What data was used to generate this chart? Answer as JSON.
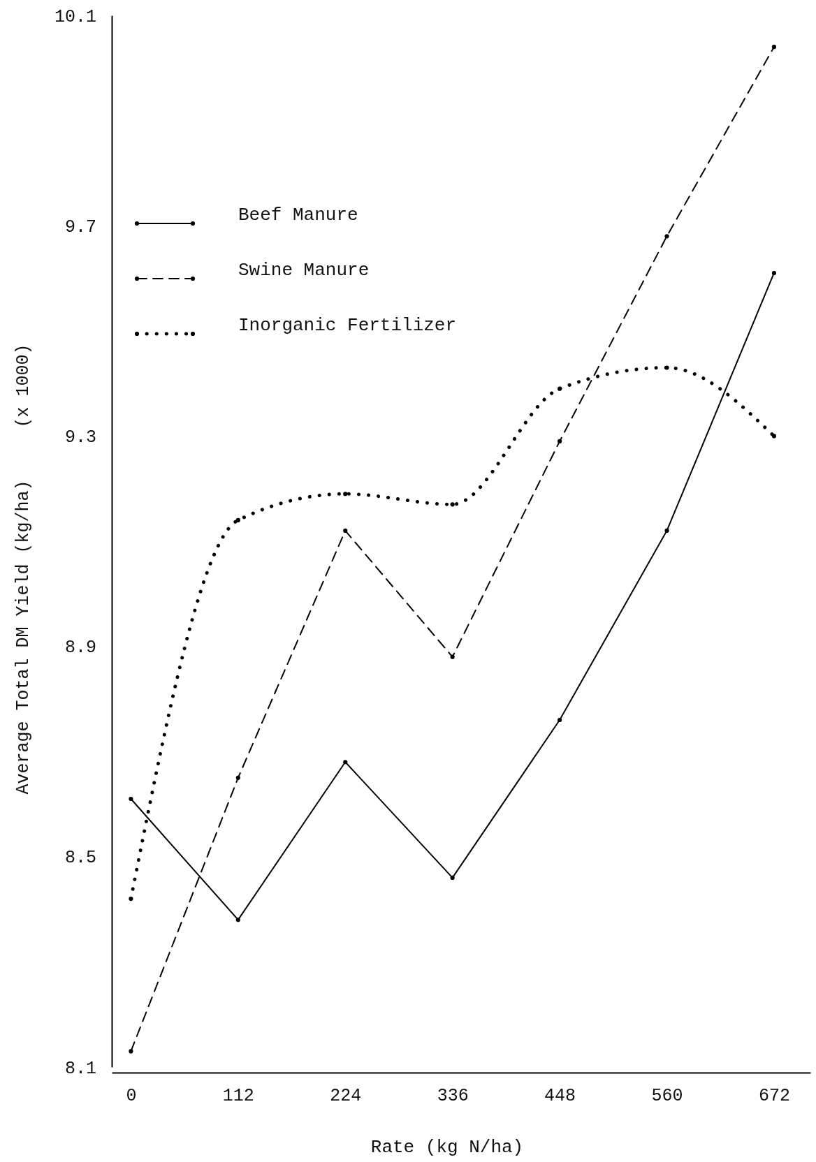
{
  "chart_data": {
    "type": "line",
    "xlabel": "Rate (kg N/ha)",
    "ylabel": "Average Total DM Yield (kg/ha)     (x 1000)",
    "x": [
      0,
      112,
      224,
      336,
      448,
      560,
      672
    ],
    "xlim": [
      -20,
      710
    ],
    "xticks": [
      0,
      112,
      224,
      336,
      448,
      560,
      672
    ],
    "ylim": [
      8.1,
      10.1
    ],
    "yticks": [
      {
        "value": 8.1,
        "label": "8.1"
      },
      {
        "value": 8.5,
        "label": "8.5"
      },
      {
        "value": 8.9,
        "label": "8.9"
      },
      {
        "value": 9.3,
        "label": "9.3"
      },
      {
        "value": 9.7,
        "label": "9.7"
      },
      {
        "value": 10.1,
        "label": "10.1"
      }
    ],
    "series": [
      {
        "name": "Beef Manure",
        "color": "#000000",
        "line_style": "solid",
        "values": [
          8.61,
          8.38,
          8.68,
          8.46,
          8.76,
          9.12,
          9.61
        ]
      },
      {
        "name": "Swine Manure",
        "color": "#000000",
        "line_style": "dashed",
        "values": [
          8.13,
          8.65,
          9.12,
          8.88,
          9.29,
          9.68,
          10.04
        ]
      },
      {
        "name": "Inorganic Fertilizer",
        "color": "#000000",
        "line_style": "dotted",
        "values": [
          8.42,
          9.14,
          9.19,
          9.17,
          9.39,
          9.43,
          9.3
        ]
      }
    ],
    "marker": "circle",
    "legend": "top left",
    "grid": false
  }
}
